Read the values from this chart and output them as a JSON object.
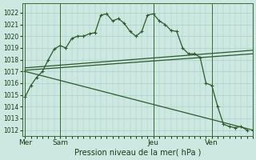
{
  "bg_color": "#cce8e0",
  "grid_color": "#aacfc8",
  "line_color": "#2d5a2d",
  "xlabel": "Pression niveau de la mer( hPa )",
  "ylim": [
    1011.5,
    1022.8
  ],
  "yticks": [
    1012,
    1013,
    1014,
    1015,
    1016,
    1017,
    1018,
    1019,
    1020,
    1021,
    1022
  ],
  "day_labels": [
    "Mer",
    "Sam",
    "Jeu",
    "Ven"
  ],
  "day_positions": [
    0,
    6,
    22,
    32
  ],
  "xlim": [
    -0.5,
    39
  ],
  "line1_x": [
    0,
    1,
    2,
    3,
    4,
    5,
    6,
    7,
    8,
    9,
    10,
    11,
    12,
    13,
    14,
    15,
    16,
    17,
    18,
    19,
    20,
    21,
    22,
    23,
    24,
    25,
    26,
    27,
    28,
    29,
    30,
    31,
    32,
    33,
    34,
    35,
    36,
    37,
    38
  ],
  "line1_y": [
    1014.8,
    1015.8,
    1016.5,
    1017.0,
    1018.0,
    1018.9,
    1019.2,
    1019.0,
    1019.8,
    1020.0,
    1020.0,
    1020.2,
    1020.3,
    1021.8,
    1021.9,
    1021.3,
    1021.5,
    1021.1,
    1020.4,
    1020.0,
    1020.4,
    1021.8,
    1021.9,
    1021.3,
    1021.0,
    1020.5,
    1020.4,
    1019.0,
    1018.5,
    1018.5,
    1018.2,
    1016.0,
    1015.8,
    1014.0,
    1012.5,
    1012.3,
    1012.2,
    1012.3,
    1012.0
  ],
  "line2_x": [
    0,
    39
  ],
  "line2_y": [
    1017.1,
    1018.5
  ],
  "line3_x": [
    0,
    39
  ],
  "line3_y": [
    1017.3,
    1018.8
  ],
  "line4_x": [
    0,
    39
  ],
  "line4_y": [
    1017.0,
    1012.0
  ]
}
